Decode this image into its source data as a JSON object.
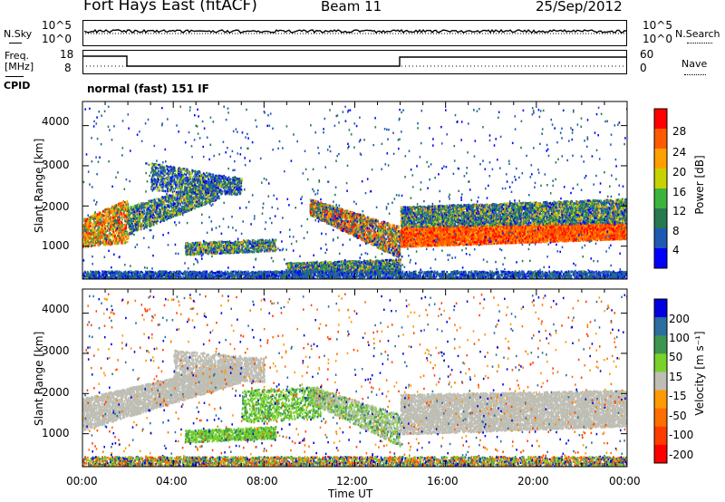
{
  "header": {
    "station": "Fort Hays East (fitACF)",
    "beam": "Beam 11",
    "date": "25/Sep/2012"
  },
  "top_panels": {
    "nsky_label": "N.Sky",
    "nsky_ticks": [
      "10^5",
      "10^0"
    ],
    "nsearch_label": "N.Search",
    "nsearch_ticks": [
      "10^5",
      "10^0"
    ],
    "freq_label_1": "Freq.",
    "freq_label_2": "[MHz]",
    "freq_ticks": [
      "18",
      "8"
    ],
    "nave_label": "Nave",
    "nave_ticks": [
      "60",
      "0"
    ],
    "cpid_label": "CPID",
    "cpid_text": "normal (fast) 151 IF"
  },
  "chart_data": [
    {
      "type": "heatmap",
      "title": "",
      "ylabel": "Slant Range [km]",
      "yticks": [
        "4000",
        "3000",
        "2000",
        "1000"
      ],
      "ylim": [
        180,
        4600
      ],
      "colorbar_label": "Power [dB]",
      "colorbar_ticks": [
        "28",
        "24",
        "20",
        "16",
        "12",
        "8",
        "4"
      ],
      "colorbar_colors": [
        "#ff0000",
        "#ff5a00",
        "#ffa000",
        "#c8d200",
        "#3cb43c",
        "#287850",
        "#1e5ab4",
        "#0000ff"
      ]
    },
    {
      "type": "heatmap",
      "title": "",
      "ylabel": "Slant Range [km]",
      "yticks": [
        "4000",
        "3000",
        "2000",
        "1000"
      ],
      "ylim": [
        180,
        4600
      ],
      "xlabel": "Time UT",
      "xticks": [
        "00:00",
        "04:00",
        "08:00",
        "12:00",
        "16:00",
        "20:00",
        "00:00"
      ],
      "colorbar_label": "Velocity [m s⁻¹]",
      "colorbar_ticks": [
        "200",
        "100",
        "50",
        "15",
        "-15",
        "-50",
        "-100",
        "-200"
      ],
      "colorbar_colors": [
        "#0000e0",
        "#2c6ea0",
        "#3c9650",
        "#78d22a",
        "#bebeb4",
        "#ff9a00",
        "#ff6e00",
        "#ff3c00",
        "#ff0000"
      ]
    }
  ]
}
